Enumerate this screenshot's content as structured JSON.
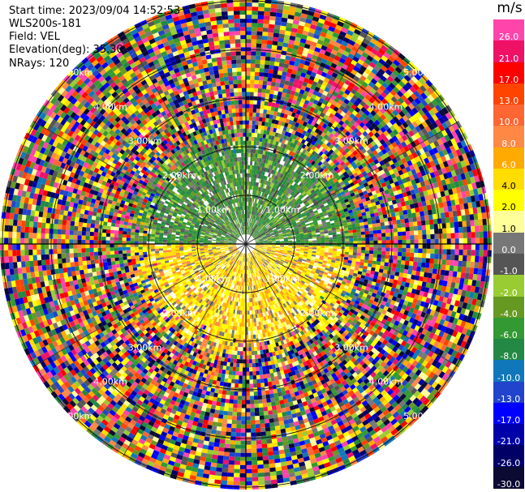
{
  "header": {
    "start_time": "Start time: 2023/09/04 14:52:53",
    "site": "WLS200s-181",
    "field": "Field: VEL",
    "elevation": "Elevation(deg): 35.30",
    "nrays": "NRays: 120"
  },
  "colorbar": {
    "title": "m/s",
    "ticks": [
      "26.0",
      "21.0",
      "17.0",
      "13.0",
      "10.0",
      "8.0",
      "6.0",
      "4.0",
      "2.0",
      "1.0",
      "0.0",
      "-1.0",
      "-2.0",
      "-4.0",
      "-6.0",
      "-8.0",
      "-10.0",
      "-13.0",
      "-17.0",
      "-21.0",
      "-26.0",
      "-30.0"
    ],
    "colors": [
      "#ff44aa",
      "#ee1166",
      "#ff0000",
      "#ff4400",
      "#ff6633",
      "#ff8844",
      "#ffaa00",
      "#ffdd00",
      "#ffff00",
      "#ffff99",
      "#777777",
      "#555555",
      "#99cc33",
      "#669922",
      "#339933",
      "#228844",
      "#1177bb",
      "#2244cc",
      "#0000ff",
      "#0000aa",
      "#000066",
      "#0a0a33"
    ]
  },
  "chart_data": {
    "type": "ppi",
    "field": "VEL",
    "units": "m/s",
    "elevation_deg": 35.3,
    "n_rays": 120,
    "range_rings_km": [
      1.0,
      2.0,
      3.0,
      4.0,
      5.0
    ],
    "ring_labels": [
      "1.00km",
      "2.00km",
      "3.00km",
      "4.00km",
      "5.00km"
    ],
    "max_range_km": 5.2,
    "spokes_deg": [
      0,
      30,
      60,
      90,
      120,
      150,
      180,
      210,
      240,
      270,
      300,
      330
    ],
    "near_field": {
      "north_half": "negative velocities (-1 to -8 m/s), green shades",
      "south_half": "positive velocities (2 to 8 m/s), yellow/orange shades"
    },
    "far_field": "noise (all values, random)"
  }
}
